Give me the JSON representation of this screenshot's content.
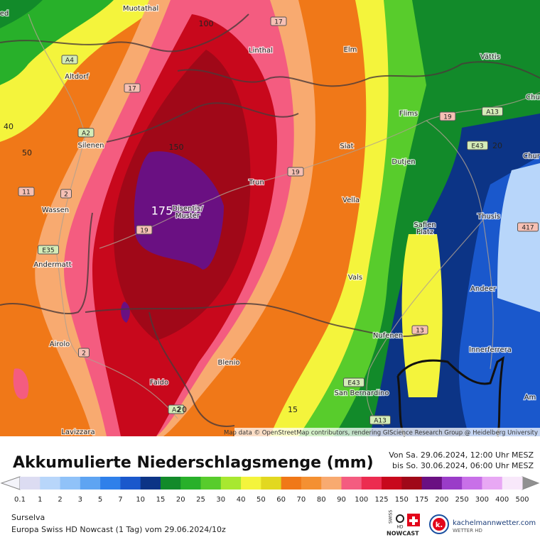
{
  "map": {
    "places": [
      [
        "ed"
      ],
      [
        "Muotathal"
      ],
      [
        "Altdorf"
      ],
      [
        "Silenen"
      ],
      [
        "Wassen"
      ],
      [
        "Andermatt"
      ],
      [
        "Airolo"
      ],
      [
        "Faido"
      ],
      [
        "Lavizzara"
      ],
      [
        "Linthal"
      ],
      [
        "Elm"
      ],
      [
        "Vättis"
      ],
      [
        "Flims"
      ],
      [
        "Chu"
      ],
      [
        "Chur"
      ],
      [
        "Siat"
      ],
      [
        "Dutjen"
      ],
      [
        "Trun"
      ],
      [
        "Disentis/",
        "Mustér"
      ],
      [
        "Vella"
      ],
      [
        "Safien",
        "Platz"
      ],
      [
        "Thusis"
      ],
      [
        "Vals"
      ],
      [
        "Andeer"
      ],
      [
        "Nufenen"
      ],
      [
        "Innerferrera"
      ],
      [
        "Blenio"
      ],
      [
        "San Bernardino"
      ],
      [
        "Am"
      ]
    ],
    "roads": [
      "17",
      "A4",
      "17",
      "A2",
      "11",
      "2",
      "E35",
      "19",
      "19",
      "19",
      "A13",
      "E43",
      "417",
      "13",
      "E43",
      "A13",
      "2",
      "A2"
    ],
    "contour_labels": [
      "100",
      "40",
      "50",
      "150",
      "175",
      "20",
      "15",
      "20"
    ],
    "attribution": "Map data © OpenStreetMap contributors, rendering GIScience Research Group @ Heidelberg University"
  },
  "legend": {
    "title": "Akkumulierte Niederschlagsmenge (mm)",
    "period": [
      "Von Sa. 29.06.2024, 12:00 Uhr MESZ",
      "bis So. 30.06.2024, 06:00 Uhr MESZ"
    ],
    "labels": [
      0.1,
      1,
      2,
      3,
      5,
      7,
      10,
      15,
      20,
      25,
      30,
      40,
      50,
      60,
      70,
      80,
      90,
      100,
      125,
      150,
      175,
      200,
      250,
      300,
      400,
      500
    ],
    "colors": [
      "#dcdcf2",
      "#b8d6fa",
      "#90c2f8",
      "#5ea4f2",
      "#2f80ea",
      "#1a58cc",
      "#0c3486",
      "#128a2a",
      "#28b02a",
      "#58cc2c",
      "#a8e830",
      "#f4f43c",
      "#e2d820",
      "#f07818",
      "#f49032",
      "#f8aa70",
      "#f45c80",
      "#ec2c50",
      "#c8081c",
      "#a00818",
      "#6a1082",
      "#9a3cc8",
      "#c870e8",
      "#e8a8f4",
      "#f8e8fa"
    ]
  },
  "footer": {
    "region": "Surselva",
    "model": "Europa Swiss HD Nowcast (1 Tag) vom 29.06.2024/10z",
    "brand1": [
      "SWISS",
      "HD",
      "NOWCAST"
    ],
    "brand2": [
      "kachelmannwetter.com",
      "WETTER HD",
      "k."
    ]
  }
}
